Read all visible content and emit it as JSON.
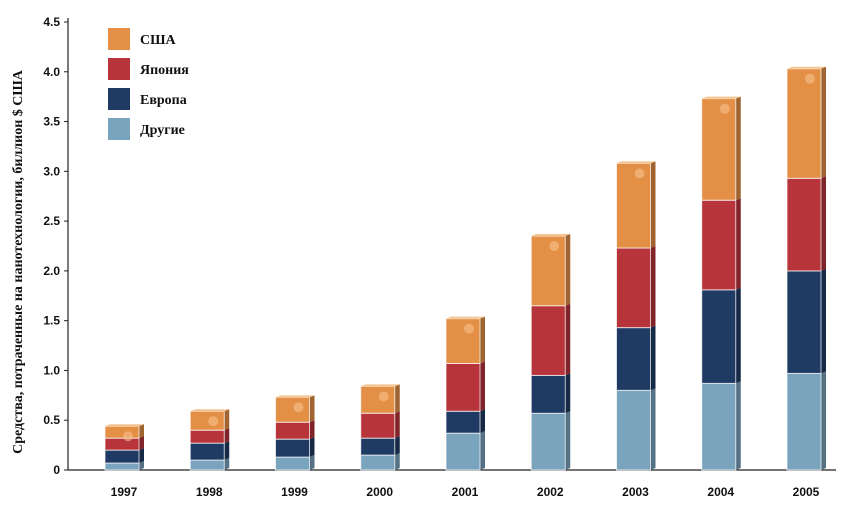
{
  "chart_data": {
    "type": "bar",
    "stacked": true,
    "title": "",
    "xlabel": "",
    "ylabel": "Средства, потраченные на нанотехнологии, биллион $ США",
    "categories": [
      "1997",
      "1998",
      "1999",
      "2000",
      "2001",
      "2002",
      "2003",
      "2004",
      "2005"
    ],
    "ylim": [
      0,
      4.5
    ],
    "yticks": [
      "0",
      "0.5",
      "1.0",
      "1.5",
      "2.0",
      "2.5",
      "3.0",
      "3.5",
      "4.0",
      "4.5"
    ],
    "grid": false,
    "legend_position": "top-left",
    "series": [
      {
        "name": "Другие",
        "color": "#7aa3bd",
        "values": [
          0.07,
          0.1,
          0.13,
          0.15,
          0.37,
          0.57,
          0.8,
          0.87,
          0.97
        ]
      },
      {
        "name": "Европа",
        "color": "#1f3a63",
        "values": [
          0.13,
          0.17,
          0.18,
          0.17,
          0.22,
          0.38,
          0.63,
          0.94,
          1.03
        ]
      },
      {
        "name": "Япония",
        "color": "#b7343a",
        "values": [
          0.12,
          0.13,
          0.17,
          0.25,
          0.48,
          0.7,
          0.8,
          0.9,
          0.93
        ]
      },
      {
        "name": "США",
        "color": "#e38f46",
        "values": [
          0.12,
          0.19,
          0.25,
          0.27,
          0.45,
          0.7,
          0.85,
          1.02,
          1.1
        ]
      }
    ],
    "legend_order": [
      "США",
      "Япония",
      "Европа",
      "Другие"
    ]
  }
}
